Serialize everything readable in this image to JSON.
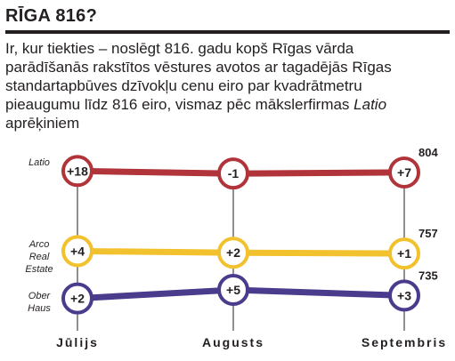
{
  "header": {
    "title": "RĪGA 816?"
  },
  "intro": {
    "text_main": "Ir, kur tiekties – noslēgt 816. gadu kopš Rīgas vārda parādīšanās rakstītos vēstures avotos ar tagadējās Rīgas standartapbūves dzīvokļu cenu eiro par kvadrātmetru pieaugumu līdz 816 eiro, vismaz pēc mākslerfirmas",
    "text_firm": "Latio",
    "text_end": "aprēķiniem"
  },
  "chart_data": {
    "type": "line",
    "categories": [
      "Jūlijs",
      "Augusts",
      "Septembris"
    ],
    "series": [
      {
        "name": "Latio",
        "name_lines": [
          "Latio"
        ],
        "color": "#b0343a",
        "values": [
          18,
          -1,
          7
        ],
        "labels": [
          "+18",
          "-1",
          "+7"
        ],
        "end_value": "804"
      },
      {
        "name": "Arco Real Estate",
        "name_lines": [
          "Arco",
          "Real",
          "Estate"
        ],
        "color": "#f2c12e",
        "values": [
          4,
          2,
          1
        ],
        "labels": [
          "+4",
          "+2",
          "+1"
        ],
        "end_value": "757"
      },
      {
        "name": "Ober Haus",
        "name_lines": [
          "Ober",
          "Haus"
        ],
        "color": "#4b3b8c",
        "values": [
          2,
          5,
          3
        ],
        "labels": [
          "+2",
          "+5",
          "+3"
        ],
        "end_value": "735"
      }
    ],
    "grid": false,
    "legend": "left"
  }
}
